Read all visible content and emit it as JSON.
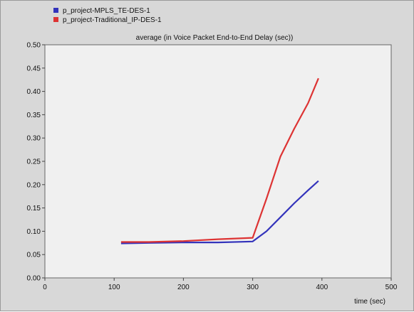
{
  "chart_data": {
    "type": "line",
    "title": "average (in Voice Packet End-to-End Delay (sec))",
    "xlabel": "time (sec)",
    "ylabel": "",
    "xlim": [
      0,
      500
    ],
    "ylim": [
      0,
      0.5
    ],
    "x_ticks": [
      "0",
      "100",
      "200",
      "300",
      "400",
      "500"
    ],
    "y_ticks": [
      "0.00",
      "0.05",
      "0.10",
      "0.15",
      "0.20",
      "0.25",
      "0.30",
      "0.35",
      "0.40",
      "0.45",
      "0.50"
    ],
    "grid": false,
    "legend_position": "top-left",
    "series": [
      {
        "name": "p_project-MPLS_TE-DES-1",
        "color": "#3333bb",
        "points": [
          [
            110,
            0.074
          ],
          [
            150,
            0.075
          ],
          [
            200,
            0.076
          ],
          [
            250,
            0.076
          ],
          [
            300,
            0.078
          ],
          [
            320,
            0.1
          ],
          [
            340,
            0.13
          ],
          [
            360,
            0.16
          ],
          [
            380,
            0.188
          ],
          [
            395,
            0.208
          ]
        ]
      },
      {
        "name": "p_project-Traditional_IP-DES-1",
        "color": "#dd3333",
        "points": [
          [
            110,
            0.077
          ],
          [
            150,
            0.077
          ],
          [
            200,
            0.079
          ],
          [
            250,
            0.083
          ],
          [
            300,
            0.086
          ],
          [
            320,
            0.17
          ],
          [
            340,
            0.26
          ],
          [
            360,
            0.32
          ],
          [
            380,
            0.375
          ],
          [
            395,
            0.428
          ]
        ]
      }
    ]
  }
}
